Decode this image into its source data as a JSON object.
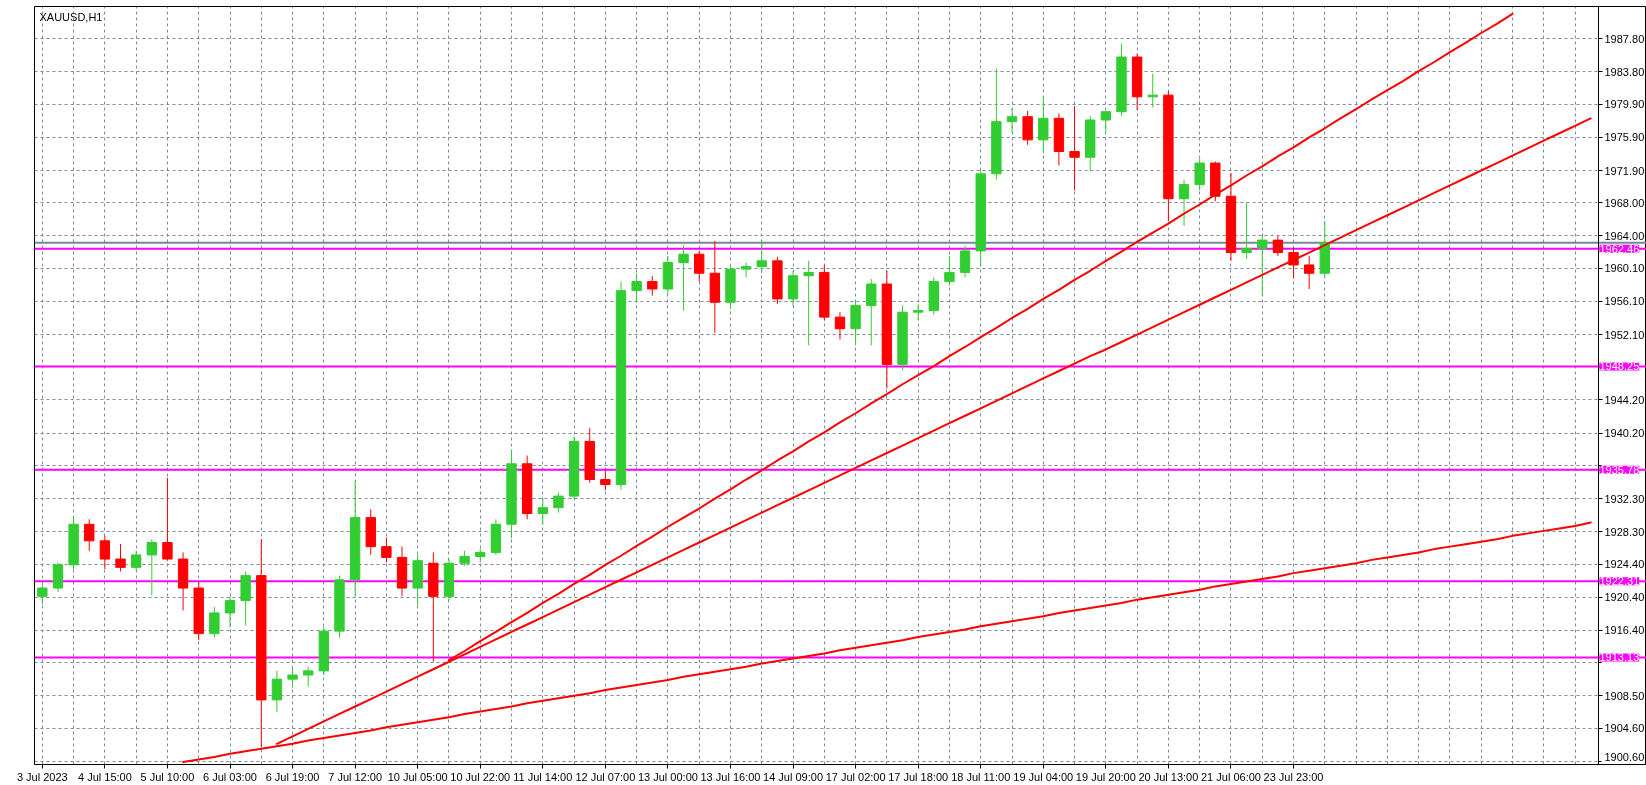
{
  "chart_data": {
    "type": "candlestick",
    "title": "XAUUSD,H1",
    "categories": [
      "3 Jul 2023",
      null,
      null,
      null,
      "4 Jul 15:00",
      null,
      null,
      null,
      "5 Jul 10:00",
      null,
      null,
      null,
      "6 Jul 03:00",
      null,
      null,
      null,
      "6 Jul 19:00",
      null,
      null,
      null,
      "7 Jul 12:00",
      null,
      null,
      null,
      "10 Jul 05:00",
      null,
      null,
      null,
      "10 Jul 22:00",
      null,
      null,
      null,
      "11 Jul 14:00",
      null,
      null,
      null,
      "12 Jul 07:00",
      null,
      null,
      null,
      "13 Jul 00:00",
      null,
      null,
      null,
      "13 Jul 16:00",
      null,
      null,
      null,
      "14 Jul 09:00",
      null,
      null,
      null,
      "17 Jul 02:00",
      null,
      null,
      null,
      "17 Jul 18:00",
      null,
      null,
      null,
      "18 Jul 11:00",
      null,
      null,
      null,
      "19 Jul 04:00",
      null,
      null,
      null,
      "19 Jul 20:00",
      null,
      null,
      null,
      "20 Jul 13:00",
      null,
      null,
      null,
      "21 Jul 06:00",
      null,
      null,
      null,
      "23 Jul 23:00",
      null,
      null,
      null,
      null,
      null,
      null,
      null,
      null,
      null,
      null,
      null,
      null,
      null,
      null,
      null,
      null,
      null,
      null,
      null
    ],
    "ohlc": [
      [
        1920.5,
        1922.0,
        1919.5,
        1921.5
      ],
      [
        1921.5,
        1924.6,
        1921.0,
        1924.3
      ],
      [
        1924.3,
        1930.2,
        1923.8,
        1929.2
      ],
      [
        1929.2,
        1929.8,
        1926.0,
        1927.2
      ],
      [
        1927.2,
        1927.8,
        1923.8,
        1925.0
      ],
      [
        1925.0,
        1926.8,
        1923.5,
        1924.0
      ],
      [
        1924.0,
        1926.0,
        1923.6,
        1925.5
      ],
      [
        1925.5,
        1927.4,
        1920.6,
        1927.0
      ],
      [
        1927.0,
        1934.8,
        1924.8,
        1925.0
      ],
      [
        1925.0,
        1925.8,
        1918.8,
        1921.5
      ],
      [
        1921.5,
        1922.3,
        1915.2,
        1916.0
      ],
      [
        1916.0,
        1919.2,
        1915.5,
        1918.5
      ],
      [
        1918.5,
        1920.5,
        1916.8,
        1920.0
      ],
      [
        1920.0,
        1923.5,
        1917.0,
        1923.0
      ],
      [
        1923.0,
        1927.4,
        1902.3,
        1908.0
      ],
      [
        1908.0,
        1911.5,
        1906.5,
        1910.5
      ],
      [
        1910.5,
        1912.0,
        1909.5,
        1911.0
      ],
      [
        1911.0,
        1912.0,
        1909.6,
        1911.5
      ],
      [
        1911.5,
        1916.8,
        1911.0,
        1916.3
      ],
      [
        1916.3,
        1923.0,
        1915.5,
        1922.5
      ],
      [
        1922.5,
        1934.4,
        1920.5,
        1930.0
      ],
      [
        1930.0,
        1931.0,
        1925.5,
        1926.5
      ],
      [
        1926.5,
        1927.6,
        1924.6,
        1925.2
      ],
      [
        1925.2,
        1926.5,
        1920.5,
        1921.5
      ],
      [
        1921.5,
        1925.5,
        1919.4,
        1924.8
      ],
      [
        1924.5,
        1925.8,
        1912.6,
        1920.5
      ],
      [
        1920.5,
        1925.0,
        1920.0,
        1924.5
      ],
      [
        1924.5,
        1926.0,
        1924.2,
        1925.3
      ],
      [
        1925.3,
        1926.2,
        1924.6,
        1925.8
      ],
      [
        1925.8,
        1929.8,
        1925.5,
        1929.2
      ],
      [
        1929.2,
        1938.1,
        1927.5,
        1936.5
      ],
      [
        1936.5,
        1937.5,
        1929.8,
        1930.5
      ],
      [
        1930.5,
        1932.4,
        1929.2,
        1931.2
      ],
      [
        1931.2,
        1933.0,
        1930.6,
        1932.6
      ],
      [
        1932.6,
        1939.8,
        1932.2,
        1939.2
      ],
      [
        1939.2,
        1940.8,
        1934.2,
        1934.6
      ],
      [
        1934.6,
        1935.8,
        1933.3,
        1934.0
      ],
      [
        1934.0,
        1958.5,
        1933.4,
        1957.4
      ],
      [
        1957.4,
        1959.5,
        1956.0,
        1958.5
      ],
      [
        1958.5,
        1959.2,
        1956.8,
        1957.6
      ],
      [
        1957.6,
        1961.6,
        1957.0,
        1960.8
      ],
      [
        1960.8,
        1962.9,
        1955.0,
        1961.8
      ],
      [
        1961.8,
        1962.2,
        1958.5,
        1959.5
      ],
      [
        1959.5,
        1963.4,
        1952.3,
        1956.0
      ],
      [
        1956.0,
        1960.6,
        1955.2,
        1960.0
      ],
      [
        1960.0,
        1960.8,
        1959.0,
        1960.3
      ],
      [
        1960.3,
        1963.5,
        1959.5,
        1961.0
      ],
      [
        1961.0,
        1961.5,
        1955.8,
        1956.4
      ],
      [
        1956.4,
        1959.8,
        1955.5,
        1959.2
      ],
      [
        1959.2,
        1961.0,
        1950.8,
        1959.6
      ],
      [
        1959.6,
        1960.5,
        1953.8,
        1954.2
      ],
      [
        1954.2,
        1954.8,
        1951.5,
        1952.8
      ],
      [
        1952.8,
        1956.2,
        1950.8,
        1955.6
      ],
      [
        1955.6,
        1958.8,
        1950.8,
        1958.2
      ],
      [
        1958.2,
        1959.8,
        1945.6,
        1948.5
      ],
      [
        1948.5,
        1955.6,
        1947.8,
        1954.8
      ],
      [
        1954.8,
        1955.8,
        1953.8,
        1955.0
      ],
      [
        1955.0,
        1959.0,
        1954.5,
        1958.5
      ],
      [
        1958.5,
        1961.6,
        1958.0,
        1959.6
      ],
      [
        1959.6,
        1962.8,
        1959.0,
        1962.2
      ],
      [
        1962.2,
        1972.0,
        1960.4,
        1971.5
      ],
      [
        1971.5,
        1984.2,
        1970.8,
        1977.8
      ],
      [
        1977.8,
        1979.4,
        1976.5,
        1978.4
      ],
      [
        1978.4,
        1979.1,
        1975.0,
        1975.6
      ],
      [
        1975.6,
        1980.9,
        1974.0,
        1978.2
      ],
      [
        1978.2,
        1978.8,
        1972.5,
        1974.2
      ],
      [
        1974.2,
        1979.7,
        1969.5,
        1973.5
      ],
      [
        1973.5,
        1978.5,
        1971.8,
        1978.0
      ],
      [
        1978.0,
        1979.0,
        1976.5,
        1979.0
      ],
      [
        1979.0,
        1987.2,
        1978.5,
        1985.6
      ],
      [
        1985.6,
        1986.0,
        1979.2,
        1980.8
      ],
      [
        1980.8,
        1983.6,
        1979.5,
        1981.0
      ],
      [
        1981.0,
        1981.5,
        1965.8,
        1968.5
      ],
      [
        1968.5,
        1970.8,
        1965.2,
        1970.2
      ],
      [
        1970.2,
        1973.3,
        1969.5,
        1972.8
      ],
      [
        1972.8,
        1973.0,
        1968.2,
        1968.8
      ],
      [
        1968.8,
        1971.6,
        1961.0,
        1962.0
      ],
      [
        1962.0,
        1968.0,
        1961.2,
        1962.5
      ],
      [
        1962.5,
        1964.0,
        1956.8,
        1963.5
      ],
      [
        1963.5,
        1964.0,
        1961.6,
        1962.0
      ],
      [
        1962.0,
        1962.6,
        1958.9,
        1960.5
      ],
      [
        1960.5,
        1961.6,
        1957.6,
        1959.5
      ],
      [
        1959.5,
        1965.8,
        1959.0,
        1963.2
      ],
      null,
      null,
      null,
      null,
      null,
      null,
      null,
      null,
      null,
      null,
      null,
      null,
      null,
      null,
      null,
      null,
      null
    ],
    "colors": [
      "#32cd32",
      "#32cd32",
      "#32cd32",
      "#ff0000",
      "#ff0000",
      "#ff0000",
      "#32cd32",
      "#32cd32",
      "#ff0000",
      "#ff0000",
      "#ff0000",
      "#32cd32",
      "#32cd32",
      "#32cd32",
      "#ff0000",
      "#32cd32",
      "#32cd32",
      "#32cd32",
      "#32cd32",
      "#32cd32",
      "#32cd32",
      "#ff0000",
      "#ff0000",
      "#ff0000",
      "#32cd32",
      "#ff0000",
      "#32cd32",
      "#32cd32",
      "#32cd32",
      "#32cd32",
      "#32cd32",
      "#ff0000",
      "#32cd32",
      "#32cd32",
      "#32cd32",
      "#ff0000",
      "#ff0000",
      "#32cd32",
      "#32cd32",
      "#ff0000",
      "#32cd32",
      "#32cd32",
      "#ff0000",
      "#ff0000",
      "#32cd32",
      "#32cd32",
      "#32cd32",
      "#ff0000",
      "#32cd32",
      "#32cd32",
      "#ff0000",
      "#ff0000",
      "#32cd32",
      "#32cd32",
      "#ff0000",
      "#32cd32",
      "#32cd32",
      "#32cd32",
      "#32cd32",
      "#32cd32",
      "#32cd32",
      "#32cd32",
      "#32cd32",
      "#ff0000",
      "#32cd32",
      "#ff0000",
      "#ff0000",
      "#32cd32",
      "#32cd32",
      "#32cd32",
      "#ff0000",
      "#32cd32",
      "#ff0000",
      "#32cd32",
      "#32cd32",
      "#ff0000",
      "#ff0000",
      "#32cd32",
      "#32cd32",
      "#ff0000",
      "#ff0000",
      "#ff0000",
      "#32cd32",
      null,
      null,
      null,
      null,
      null,
      null,
      null,
      null,
      null,
      null,
      null,
      null,
      null,
      null,
      null,
      null,
      null
    ],
    "series": [
      {
        "type": "line",
        "color": "#ff0000",
        "values": [
          null,
          null,
          null,
          null,
          null,
          null,
          null,
          null,
          null,
          1900.5,
          1900.8,
          1901.1,
          1901.5,
          1901.8,
          1902.1,
          1902.4,
          1902.7,
          1903.1,
          1903.4,
          1903.7,
          1904.0,
          1904.3,
          1904.7,
          1905.0,
          1905.3,
          1905.6,
          1905.9,
          1906.3,
          1906.6,
          1906.9,
          1907.2,
          1907.6,
          1907.9,
          1908.2,
          1908.5,
          1908.8,
          1909.2,
          1909.5,
          1909.8,
          1910.1,
          1910.4,
          1910.8,
          1911.1,
          1911.4,
          1911.7,
          1912.0,
          1912.4,
          1912.7,
          1913.0,
          1913.3,
          1913.6,
          1914.0,
          1914.3,
          1914.6,
          1914.9,
          1915.2,
          1915.6,
          1915.9,
          1916.2,
          1916.5,
          1916.9,
          1917.2,
          1917.5,
          1917.8,
          1918.1,
          1918.5,
          1918.8,
          1919.1,
          1919.4,
          1919.7,
          1920.1,
          1920.4,
          1920.7,
          1921.0,
          1921.3,
          1921.7,
          1922.0,
          1922.3,
          1922.6,
          1922.9,
          1923.3,
          1923.6,
          1923.9,
          1924.2,
          1924.5,
          1924.9,
          1925.2,
          1925.5,
          1925.8,
          1926.2,
          1926.5,
          1926.8,
          1927.1,
          1927.4,
          1927.8,
          1928.1,
          1928.4,
          1928.7,
          1929.0,
          1929.4
        ]
      },
      {
        "type": "line",
        "color": "#ff0000",
        "values": [
          null,
          null,
          null,
          null,
          null,
          null,
          null,
          null,
          null,
          null,
          null,
          null,
          null,
          null,
          null,
          1902.7,
          1903.6,
          1904.5,
          1905.4,
          1906.3,
          1907.2,
          1908.1,
          1909.0,
          1909.9,
          1910.8,
          1911.7,
          1912.6,
          1913.5,
          1914.4,
          1915.3,
          1916.2,
          1917.1,
          1918.0,
          1918.9,
          1919.8,
          1920.7,
          1921.6,
          1922.5,
          1923.4,
          1924.3,
          1925.2,
          1926.1,
          1927.0,
          1927.9,
          1928.8,
          1929.7,
          1930.6,
          1931.5,
          1932.4,
          1933.3,
          1934.2,
          1935.1,
          1936.0,
          1936.9,
          1937.8,
          1938.7,
          1939.6,
          1940.5,
          1941.4,
          1942.3,
          1943.2,
          1944.1,
          1945.0,
          1945.9,
          1946.8,
          1947.7,
          1948.6,
          1949.5,
          1950.3,
          1951.2,
          1952.1,
          1953.0,
          1953.9,
          1954.8,
          1955.7,
          1956.6,
          1957.5,
          1958.4,
          1959.3,
          1960.2,
          1961.1,
          1962.0,
          1962.9,
          1963.8,
          1964.7,
          1965.6,
          1966.5,
          1967.4,
          1968.3,
          1969.2,
          1970.1,
          1971.0,
          1971.9,
          1972.8,
          1973.7,
          1974.6,
          1975.5,
          1976.4,
          1977.3,
          1978.2
        ]
      },
      {
        "type": "line",
        "color": "#ff0000",
        "values": [
          null,
          null,
          null,
          null,
          null,
          null,
          null,
          null,
          null,
          null,
          null,
          null,
          null,
          null,
          null,
          null,
          null,
          null,
          null,
          null,
          null,
          null,
          null,
          null,
          null,
          null,
          1912.8,
          1913.9,
          1915.1,
          1916.2,
          1917.4,
          1918.5,
          1919.7,
          1920.8,
          1922.0,
          1923.1,
          1924.3,
          1925.4,
          1926.6,
          1927.7,
          1928.9,
          1930.0,
          1931.1,
          1932.3,
          1933.4,
          1934.6,
          1935.7,
          1936.9,
          1938.0,
          1939.2,
          1940.3,
          1941.5,
          1942.6,
          1943.8,
          1944.9,
          1946.1,
          1947.2,
          1948.3,
          1949.5,
          1950.6,
          1951.8,
          1952.9,
          1954.1,
          1955.2,
          1956.4,
          1957.5,
          1958.7,
          1959.8,
          1961.0,
          1962.1,
          1963.3,
          1964.4,
          1965.5,
          1966.7,
          1967.8,
          1969.0,
          1970.1,
          1971.3,
          1972.4,
          1973.6,
          1974.7,
          1975.9,
          1977.0,
          1978.2,
          1979.3,
          1980.5,
          1981.6,
          1982.7,
          1983.9,
          1985.0,
          1986.2,
          1987.3,
          1988.5,
          1989.6,
          1990.8,
          null,
          null,
          null,
          null,
          null
        ]
      }
    ],
    "ref_lines": [
      {
        "axis": "y",
        "value": 1962.46,
        "label": "1962.46",
        "color": "#ff00ff"
      },
      {
        "axis": "y",
        "value": 1948.25,
        "label": "1948.25",
        "color": "#ff00ff"
      },
      {
        "axis": "y",
        "value": 1935.78,
        "label": "1935.78",
        "color": "#ff00ff"
      },
      {
        "axis": "y",
        "value": 1922.31,
        "label": "1922.31",
        "color": "#ff00ff"
      },
      {
        "axis": "y",
        "value": 1913.13,
        "label": "1913.13",
        "color": "#ff00ff"
      },
      {
        "axis": "y",
        "value": 1963.17,
        "color": "#778899"
      }
    ],
    "ylim": [
      1900.2,
      1991.7
    ],
    "yticks": [
      {
        "value": 1900.6,
        "label": "1900.60"
      },
      {
        "value": 1904.6,
        "label": "1904.60"
      },
      {
        "value": 1908.5,
        "label": "1908.50"
      },
      {
        "value": 1912.5,
        "label": null
      },
      {
        "value": 1916.4,
        "label": "1916.40"
      },
      {
        "value": 1920.4,
        "label": "1920.40"
      },
      {
        "value": 1924.4,
        "label": "1924.40"
      },
      {
        "value": 1928.3,
        "label": "1928.30"
      },
      {
        "value": 1932.3,
        "label": "1932.30"
      },
      {
        "value": 1936.3,
        "label": null
      },
      {
        "value": 1940.2,
        "label": "1940.20"
      },
      {
        "value": 1944.2,
        "label": "1944.20"
      },
      {
        "value": 1948.2,
        "label": null
      },
      {
        "value": 1952.1,
        "label": "1952.10"
      },
      {
        "value": 1956.1,
        "label": "1956.10"
      },
      {
        "value": 1960.1,
        "label": "1960.10"
      },
      {
        "value": 1964.0,
        "label": "1964.00"
      },
      {
        "value": 1968.0,
        "label": "1968.00"
      },
      {
        "value": 1971.9,
        "label": "1971.90"
      },
      {
        "value": 1975.9,
        "label": "1975.90"
      },
      {
        "value": 1979.9,
        "label": "1979.90"
      },
      {
        "value": 1983.8,
        "label": "1983.80"
      },
      {
        "value": 1987.8,
        "label": "1987.80"
      }
    ],
    "grid": true
  }
}
